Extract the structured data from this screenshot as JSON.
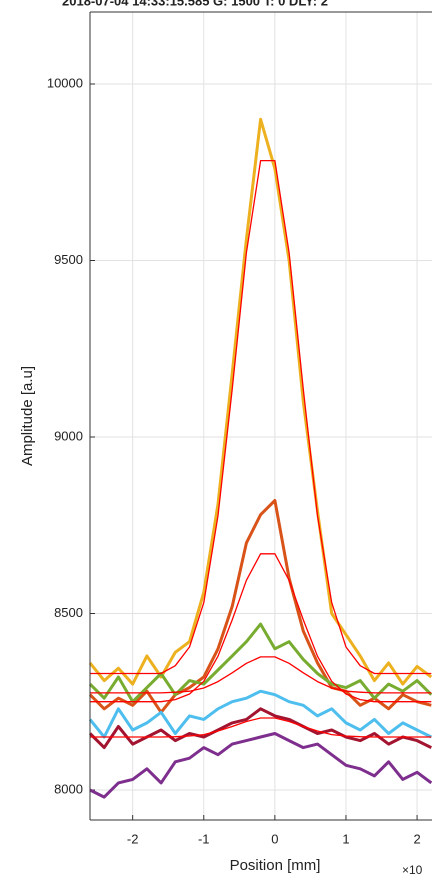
{
  "chart_data": {
    "type": "line",
    "title": "2018-07-04 14:33:15.585 G: 1500 T: 0 DLY: 2",
    "x_label": "Position [mm]",
    "y_label": "Amplitude [a.u]",
    "x_exponent": "×10",
    "x": [
      -2.6,
      -2.4,
      -2.2,
      -2.0,
      -1.8,
      -1.6,
      -1.4,
      -1.2,
      -1.0,
      -0.8,
      -0.6,
      -0.4,
      -0.2,
      0.0,
      0.2,
      0.4,
      0.6,
      0.8,
      1.0,
      1.2,
      1.4,
      1.6,
      1.8,
      2.0,
      2.2
    ],
    "xlim": [
      -2.6,
      2.21
    ],
    "ylim": [
      7915,
      10204
    ],
    "xticks": [
      -2,
      -1,
      0,
      1,
      2
    ],
    "yticks": [
      8000,
      8500,
      9000,
      9500,
      10000
    ],
    "grid": true,
    "series": [
      {
        "color": "#EDB120",
        "values": [
          8360,
          8310,
          8345,
          8300,
          8380,
          8320,
          8390,
          8420,
          8560,
          8810,
          9180,
          9560,
          9900,
          9760,
          9500,
          9100,
          8790,
          8500,
          8440,
          8380,
          8310,
          8360,
          8300,
          8350,
          8320
        ]
      },
      {
        "color": "#D95319",
        "values": [
          8270,
          8230,
          8260,
          8240,
          8280,
          8220,
          8270,
          8290,
          8320,
          8400,
          8520,
          8700,
          8780,
          8820,
          8600,
          8450,
          8360,
          8290,
          8280,
          8240,
          8260,
          8230,
          8270,
          8250,
          8240
        ]
      },
      {
        "color": "#77AC30",
        "values": [
          8300,
          8260,
          8320,
          8250,
          8290,
          8330,
          8270,
          8310,
          8300,
          8340,
          8380,
          8420,
          8470,
          8400,
          8420,
          8370,
          8330,
          8300,
          8290,
          8310,
          8260,
          8300,
          8280,
          8310,
          8270
        ]
      },
      {
        "color": "#4DBEEE",
        "values": [
          8200,
          8150,
          8230,
          8170,
          8190,
          8220,
          8160,
          8210,
          8200,
          8230,
          8250,
          8260,
          8280,
          8270,
          8250,
          8240,
          8210,
          8230,
          8190,
          8170,
          8200,
          8160,
          8190,
          8170,
          8150
        ]
      },
      {
        "color": "#7E2F8E",
        "values": [
          8000,
          7980,
          8020,
          8030,
          8060,
          8020,
          8080,
          8090,
          8120,
          8100,
          8130,
          8140,
          8150,
          8160,
          8140,
          8120,
          8130,
          8100,
          8070,
          8060,
          8040,
          8080,
          8030,
          8050,
          8020
        ]
      },
      {
        "color": "#A2142F",
        "values": [
          8160,
          8120,
          8180,
          8130,
          8150,
          8170,
          8140,
          8160,
          8150,
          8170,
          8190,
          8200,
          8230,
          8210,
          8200,
          8180,
          8160,
          8170,
          8150,
          8140,
          8160,
          8130,
          8150,
          8140,
          8120
        ]
      },
      {
        "color": "#FF0000",
        "values": [
          8330,
          8330,
          8330,
          8330,
          8330,
          8330,
          8352,
          8405,
          8531,
          8777,
          9135,
          9522,
          9783,
          9783,
          9522,
          9135,
          8777,
          8531,
          8405,
          8352,
          8330,
          8330,
          8330,
          8330,
          8330
        ]
      },
      {
        "color": "#FF0000",
        "values": [
          8250,
          8250,
          8250,
          8250,
          8250,
          8250,
          8256,
          8272,
          8308,
          8379,
          8482,
          8594,
          8669,
          8669,
          8594,
          8482,
          8379,
          8308,
          8272,
          8256,
          8250,
          8250,
          8250,
          8250,
          8250
        ]
      },
      {
        "color": "#FF0000",
        "values": [
          8275,
          8275,
          8275,
          8275,
          8275,
          8275,
          8277,
          8280,
          8289,
          8307,
          8332,
          8359,
          8377,
          8377,
          8359,
          8332,
          8307,
          8289,
          8280,
          8277,
          8275,
          8275,
          8275,
          8275,
          8275
        ]
      },
      {
        "color": "#FF0000",
        "values": [
          8150,
          8150,
          8150,
          8150,
          8150,
          8150,
          8151,
          8153,
          8157,
          8167,
          8180,
          8194,
          8204,
          8204,
          8194,
          8180,
          8167,
          8157,
          8153,
          8151,
          8150,
          8150,
          8150,
          8150,
          8150
        ]
      }
    ]
  }
}
